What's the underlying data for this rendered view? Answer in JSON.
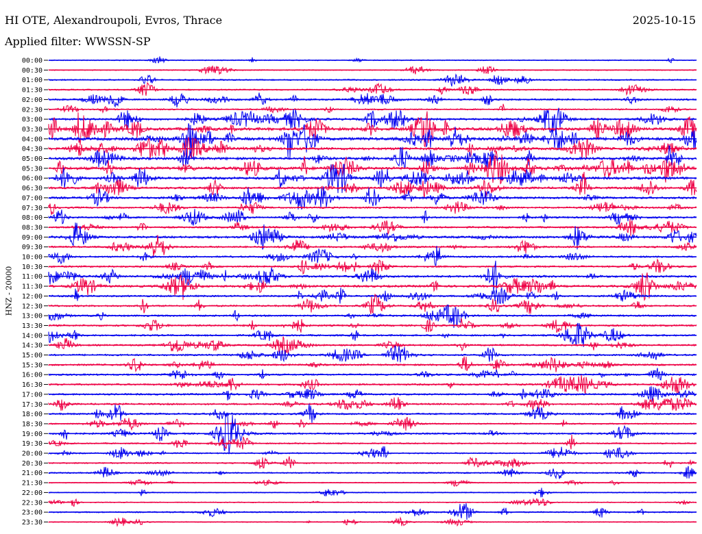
{
  "header": {
    "station": "HI OTE, Alexandroupoli, Evros, Thrace",
    "date": "2025-10-15",
    "filter": "Applied filter: WWSSN-SP"
  },
  "colors": {
    "even_hour": "#0000ee",
    "half_hour": "#ee0044"
  },
  "chart_data": {
    "type": "line",
    "title": "HI OTE, Alexandroupoli, Evros, Thrace",
    "subtitle": "Applied filter: WWSSN-SP",
    "ylabel": "HNZ - 20000",
    "xlabel": "",
    "row_labels": [
      "00:00",
      "00:30",
      "01:00",
      "01:30",
      "02:00",
      "02:30",
      "03:00",
      "03:30",
      "04:00",
      "04:30",
      "05:00",
      "05:30",
      "06:00",
      "06:30",
      "07:00",
      "07:30",
      "08:00",
      "08:30",
      "09:00",
      "09:30",
      "10:00",
      "10:30",
      "11:00",
      "11:30",
      "12:00",
      "12:30",
      "13:00",
      "13:30",
      "14:00",
      "14:30",
      "15:00",
      "15:30",
      "16:00",
      "16:30",
      "17:00",
      "17:30",
      "18:00",
      "18:30",
      "19:00",
      "19:30",
      "20:00",
      "20:30",
      "21:00",
      "21:30",
      "22:00",
      "22:30",
      "23:00",
      "23:30"
    ],
    "series": [
      {
        "values": [
          1,
          1,
          2,
          2,
          3,
          2,
          4,
          6,
          6,
          5,
          5,
          6,
          5,
          4,
          4,
          3,
          3,
          3,
          4,
          3,
          3,
          3,
          4,
          4,
          3,
          3,
          3,
          3,
          3,
          3,
          3,
          3,
          3,
          3,
          3,
          3,
          3,
          2,
          3,
          2,
          2,
          2,
          2,
          1,
          1,
          1,
          2,
          1
        ]
      }
    ],
    "grid": false,
    "legend": "none"
  }
}
